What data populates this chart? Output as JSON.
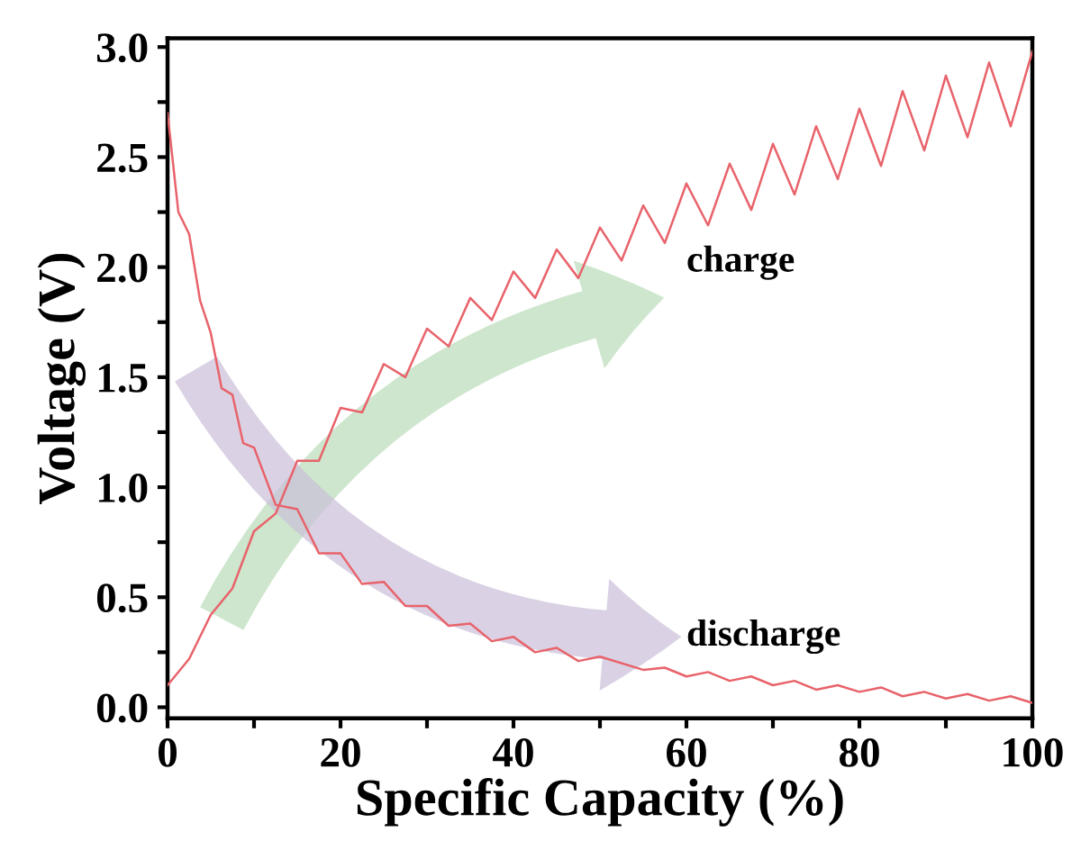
{
  "chart_data": {
    "type": "line",
    "xlabel": "Specific Capacity (%)",
    "ylabel": "Voltage (V)",
    "xlim": [
      0,
      100
    ],
    "ylim": [
      -0.05,
      3.04
    ],
    "xticks": [
      0,
      {
        "value": 10,
        "label": null
      },
      20,
      {
        "value": 30,
        "label": null
      },
      40,
      {
        "value": 50,
        "label": null
      },
      60,
      {
        "value": 70,
        "label": null
      },
      80,
      {
        "value": 90,
        "label": null
      },
      100
    ],
    "yticks": [
      {
        "value": 0,
        "label": "0.0"
      },
      {
        "value": 0.25,
        "label": null
      },
      0.5,
      {
        "value": 0.75,
        "label": null
      },
      {
        "value": 1,
        "label": "1.0"
      },
      {
        "value": 1.25,
        "label": null
      },
      1.5,
      {
        "value": 1.75,
        "label": null
      },
      {
        "value": 2,
        "label": "2.0"
      },
      {
        "value": 2.25,
        "label": null
      },
      2.5,
      {
        "value": 2.75,
        "label": null
      },
      {
        "value": 3,
        "label": "3.0"
      }
    ],
    "grid": false,
    "legend": false,
    "marker": "none",
    "line_style": "solid",
    "series": [
      {
        "color": "#e8636b",
        "x": [
          0,
          2.5,
          5,
          7.5,
          10,
          12.5,
          15,
          17.5,
          20,
          22.5,
          25,
          27.5,
          30,
          32.5,
          35,
          37.5,
          40,
          42.5,
          45,
          47.5,
          50,
          52.5,
          55,
          57.5,
          60,
          62.5,
          65,
          67.5,
          70,
          72.5,
          75,
          77.5,
          80,
          82.5,
          85,
          87.5,
          90,
          92.5,
          95,
          97.5,
          100
        ],
        "values": [
          0.1,
          0.22,
          0.42,
          0.54,
          0.8,
          0.88,
          1.12,
          1.12,
          1.36,
          1.34,
          1.56,
          1.5,
          1.72,
          1.64,
          1.86,
          1.76,
          1.98,
          1.86,
          2.08,
          1.95,
          2.18,
          2.03,
          2.28,
          2.11,
          2.38,
          2.19,
          2.47,
          2.26,
          2.56,
          2.33,
          2.64,
          2.4,
          2.72,
          2.46,
          2.8,
          2.53,
          2.87,
          2.59,
          2.93,
          2.64,
          2.98
        ]
      },
      {
        "color": "#e8636b",
        "x": [
          0,
          1.25,
          2.5,
          3.75,
          5,
          6.25,
          7.5,
          8.75,
          10,
          12.5,
          15,
          17.5,
          20,
          22.5,
          25,
          27.5,
          30,
          32.5,
          35,
          37.5,
          40,
          42.5,
          45,
          47.5,
          50,
          55,
          57.5,
          60,
          62.5,
          65,
          67.5,
          70,
          72.5,
          75,
          77.5,
          80,
          82.5,
          85,
          87.5,
          90,
          92.5,
          95,
          97.5,
          100
        ],
        "values": [
          2.7,
          2.25,
          2.15,
          1.85,
          1.7,
          1.45,
          1.42,
          1.2,
          1.18,
          0.92,
          0.9,
          0.7,
          0.7,
          0.56,
          0.57,
          0.46,
          0.46,
          0.37,
          0.38,
          0.3,
          0.32,
          0.25,
          0.27,
          0.21,
          0.23,
          0.17,
          0.18,
          0.14,
          0.16,
          0.12,
          0.14,
          0.1,
          0.12,
          0.08,
          0.1,
          0.07,
          0.09,
          0.05,
          0.07,
          0.04,
          0.06,
          0.03,
          0.05,
          0.02
        ]
      }
    ],
    "annotations": [
      "charge",
      "discharge"
    ]
  }
}
